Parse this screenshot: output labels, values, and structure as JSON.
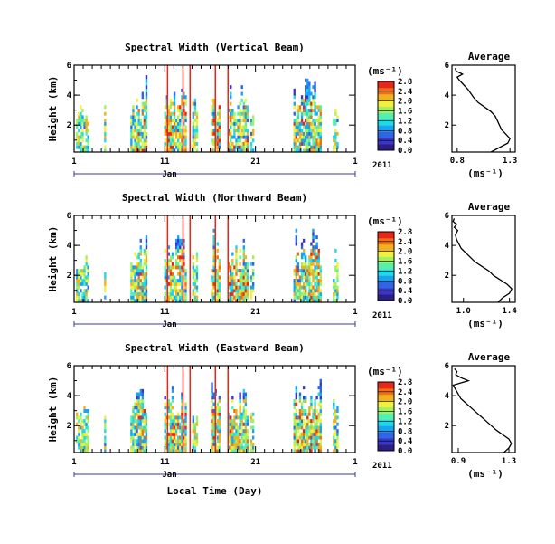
{
  "figure": {
    "x_axis_label": "Local Time (Day)",
    "month_label": "Jan",
    "year_label": "2011",
    "y_axis_label": "Height (km)",
    "colorbar_unit": "(ms⁻¹)",
    "colormap": [
      "#2a1f82",
      "#3d35c8",
      "#2f66e6",
      "#1aa3f0",
      "#20d8e6",
      "#54f0b0",
      "#a4f060",
      "#f0f040",
      "#f0b020",
      "#f07010",
      "#e8261a"
    ]
  },
  "chart_data": [
    {
      "type": "heatmap",
      "title": "Spectral Width (Vertical Beam)",
      "xlabel": "",
      "ylabel": "Height (km)",
      "x_ticks": [
        "1",
        "11",
        "21",
        "1"
      ],
      "y_ticks": [
        "2",
        "4",
        "6"
      ],
      "ylim": [
        0.2,
        6.0
      ],
      "colorbar_ticks": [
        "0.0",
        "0.4",
        "0.8",
        "1.2",
        "1.6",
        "2.0",
        "2.4",
        "2.8"
      ],
      "average_profile": {
        "title": "Average",
        "x_ticks": [
          "0.8",
          "1.3"
        ],
        "xlim": [
          0.75,
          1.35
        ],
        "heights": [
          0.2,
          0.5,
          0.8,
          1.1,
          1.4,
          1.7,
          2.0,
          2.3,
          2.6,
          2.9,
          3.2,
          3.5,
          3.8,
          4.1,
          4.4,
          4.7,
          5.0,
          5.2,
          5.4,
          5.6,
          5.8
        ],
        "values": [
          1.12,
          1.2,
          1.28,
          1.3,
          1.26,
          1.22,
          1.2,
          1.18,
          1.16,
          1.12,
          1.06,
          1.0,
          0.96,
          0.93,
          0.9,
          0.86,
          0.82,
          0.8,
          0.85,
          0.79,
          0.78
        ]
      }
    },
    {
      "type": "heatmap",
      "title": "Spectral Width (Northward Beam)",
      "xlabel": "",
      "ylabel": "Height (km)",
      "x_ticks": [
        "1",
        "11",
        "21",
        "1"
      ],
      "y_ticks": [
        "2",
        "4",
        "6"
      ],
      "ylim": [
        0.2,
        6.0
      ],
      "colorbar_ticks": [
        "0.0",
        "0.4",
        "0.8",
        "1.2",
        "1.6",
        "2.0",
        "2.4",
        "2.8"
      ],
      "average_profile": {
        "title": "Average",
        "x_ticks": [
          "1.0",
          "1.4"
        ],
        "xlim": [
          0.9,
          1.45
        ],
        "heights": [
          0.2,
          0.5,
          0.8,
          1.1,
          1.4,
          1.7,
          2.0,
          2.3,
          2.6,
          2.9,
          3.2,
          3.5,
          3.8,
          4.1,
          4.4,
          4.7,
          5.0,
          5.2,
          5.4,
          5.6,
          5.8
        ],
        "values": [
          1.3,
          1.34,
          1.4,
          1.42,
          1.38,
          1.32,
          1.26,
          1.22,
          1.16,
          1.1,
          1.06,
          1.02,
          0.98,
          0.96,
          0.94,
          0.93,
          0.95,
          0.92,
          0.94,
          0.91,
          0.92
        ]
      }
    },
    {
      "type": "heatmap",
      "title": "Spectral Width (Eastward Beam)",
      "xlabel": "Local Time (Day)",
      "ylabel": "Height (km)",
      "x_ticks": [
        "1",
        "11",
        "21",
        "1"
      ],
      "y_ticks": [
        "2",
        "4",
        "6"
      ],
      "ylim": [
        0.2,
        6.0
      ],
      "colorbar_ticks": [
        "0.0",
        "0.4",
        "0.8",
        "1.2",
        "1.6",
        "2.0",
        "2.4",
        "2.8"
      ],
      "average_profile": {
        "title": "Average",
        "x_ticks": [
          "0.9",
          "1.3"
        ],
        "xlim": [
          0.85,
          1.35
        ],
        "heights": [
          0.2,
          0.5,
          0.8,
          1.1,
          1.4,
          1.7,
          2.0,
          2.3,
          2.6,
          2.9,
          3.2,
          3.5,
          3.8,
          4.1,
          4.4,
          4.7,
          5.0,
          5.2,
          5.4,
          5.6,
          5.8
        ],
        "values": [
          1.26,
          1.3,
          1.32,
          1.3,
          1.25,
          1.2,
          1.16,
          1.12,
          1.08,
          1.04,
          1.0,
          0.96,
          0.92,
          0.9,
          0.88,
          0.86,
          0.98,
          0.92,
          0.88,
          0.89,
          0.87
        ]
      }
    }
  ]
}
